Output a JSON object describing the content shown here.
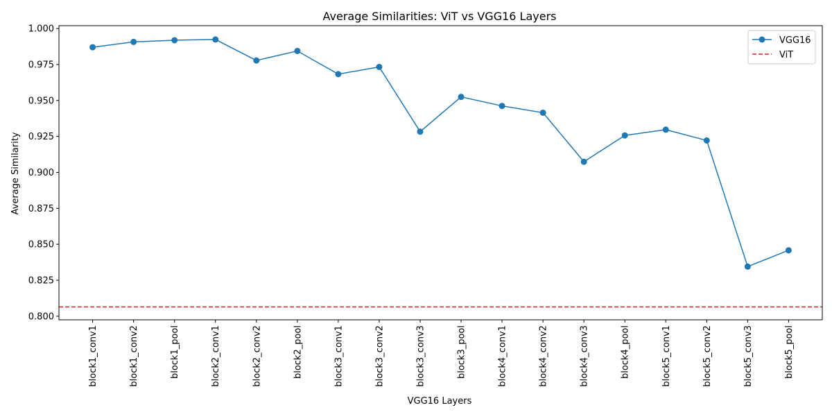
{
  "chart_data": {
    "type": "line",
    "title": "Average Similarities: ViT vs VGG16 Layers",
    "xlabel": "VGG16 Layers",
    "ylabel": "Average Similarity",
    "categories": [
      "block1_conv1",
      "block1_conv2",
      "block1_pool",
      "block2_conv1",
      "block2_conv2",
      "block2_pool",
      "block3_conv1",
      "block3_conv2",
      "block3_conv3",
      "block3_pool",
      "block4_conv1",
      "block4_conv2",
      "block4_conv3",
      "block4_pool",
      "block5_conv1",
      "block5_conv2",
      "block5_conv3",
      "block5_pool"
    ],
    "ylim": [
      0.7975,
      1.002
    ],
    "yticks": [
      "0.800",
      "0.825",
      "0.850",
      "0.875",
      "0.900",
      "0.925",
      "0.950",
      "0.975",
      "1.000"
    ],
    "series": [
      {
        "name": "VGG16",
        "type": "line",
        "marker": "circle",
        "color": "#1f77b4",
        "values": [
          0.987,
          0.9907,
          0.9919,
          0.9924,
          0.9778,
          0.9844,
          0.9683,
          0.9733,
          0.9283,
          0.9525,
          0.9462,
          0.9415,
          0.9074,
          0.9257,
          0.9297,
          0.9222,
          0.8345,
          0.8458
        ]
      },
      {
        "name": "ViT",
        "type": "hline",
        "style": "dashed",
        "color": "#d62728",
        "value": 0.8065
      }
    ],
    "legend": {
      "position": "top-right",
      "entries": [
        "VGG16",
        "ViT"
      ]
    },
    "grid": false
  }
}
